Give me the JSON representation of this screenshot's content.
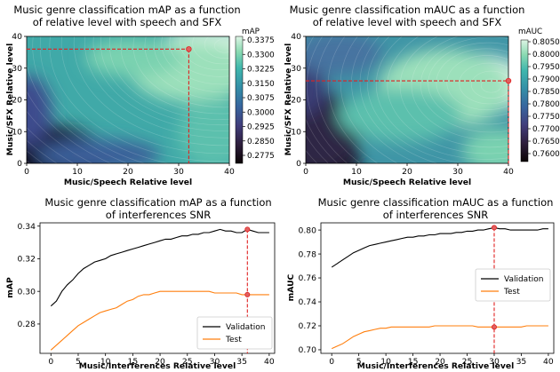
{
  "colors": {
    "validation": "#000000",
    "test": "#ff7f0e",
    "marker": "#e02020",
    "grid": "#ffffff"
  },
  "chart_data": [
    {
      "type": "heatmap",
      "title": [
        "Music genre classification mAP as a function",
        "of relative level with speech and SFX"
      ],
      "xlabel": "Music/Speech Relative level",
      "ylabel": "Music/SFX Relative level",
      "xlim": [
        0,
        40
      ],
      "ylim": [
        0,
        40
      ],
      "xticks": [
        0,
        10,
        20,
        30,
        40
      ],
      "yticks": [
        0,
        10,
        20,
        30,
        40
      ],
      "colorbar_label": "mAP",
      "colorbar_range": [
        0.2775,
        0.3375
      ],
      "colorbar_ticks": [
        "0.3375",
        "0.3300",
        "0.3225",
        "0.3150",
        "0.3075",
        "0.3000",
        "0.2925",
        "0.2850",
        "0.2775"
      ],
      "optimum": {
        "x": 32,
        "y": 36
      },
      "contours": "filled",
      "colormap": "mako (dark purple to light green)"
    },
    {
      "type": "heatmap",
      "title": [
        "Music genre classification mAUC as a function",
        "of relative level with speech and SFX"
      ],
      "xlabel": "Music/Speech Relative level",
      "ylabel": "Music/SFX Relative level",
      "xlim": [
        0,
        40
      ],
      "ylim": [
        0,
        40
      ],
      "xticks": [
        0,
        10,
        20,
        30,
        40
      ],
      "yticks": [
        0,
        10,
        20,
        30,
        40
      ],
      "colorbar_label": "mAUC",
      "colorbar_range": [
        0.76,
        0.805
      ],
      "colorbar_ticks": [
        "0.8050",
        "0.8000",
        "0.7950",
        "0.7900",
        "0.7850",
        "0.7800",
        "0.7750",
        "0.7700",
        "0.7650",
        "0.7600"
      ],
      "optimum": {
        "x": 40,
        "y": 26
      },
      "contours": "filled",
      "colormap": "mako (dark purple to light green)"
    },
    {
      "type": "line",
      "title": [
        "Music genre classification mAP as a function",
        "of interferences SNR"
      ],
      "xlabel": "Music/Interferences Relative level",
      "ylabel": "mAP",
      "xlim": [
        -2,
        41
      ],
      "ylim": [
        0.262,
        0.342
      ],
      "xticks": [
        0,
        5,
        10,
        15,
        20,
        25,
        30,
        35,
        40
      ],
      "yticks": [
        0.28,
        0.3,
        0.32,
        0.34
      ],
      "ytick_labels": [
        "0.28",
        "0.30",
        "0.32",
        "0.34"
      ],
      "legend_position": "bottom-right",
      "series": [
        {
          "name": "Validation",
          "x": [
            0,
            1,
            2,
            3,
            4,
            5,
            6,
            7,
            8,
            9,
            10,
            11,
            12,
            13,
            14,
            15,
            16,
            17,
            18,
            19,
            20,
            21,
            22,
            23,
            24,
            25,
            26,
            27,
            28,
            29,
            30,
            31,
            32,
            33,
            34,
            35,
            36,
            37,
            38,
            39,
            40
          ],
          "values": [
            0.291,
            0.294,
            0.3,
            0.304,
            0.307,
            0.311,
            0.314,
            0.316,
            0.318,
            0.319,
            0.32,
            0.322,
            0.323,
            0.324,
            0.325,
            0.326,
            0.327,
            0.328,
            0.329,
            0.33,
            0.331,
            0.332,
            0.332,
            0.333,
            0.334,
            0.334,
            0.335,
            0.335,
            0.336,
            0.336,
            0.337,
            0.338,
            0.337,
            0.337,
            0.336,
            0.336,
            0.338,
            0.337,
            0.336,
            0.336,
            0.336
          ]
        },
        {
          "name": "Test",
          "x": [
            0,
            1,
            2,
            3,
            4,
            5,
            6,
            7,
            8,
            9,
            10,
            11,
            12,
            13,
            14,
            15,
            16,
            17,
            18,
            19,
            20,
            21,
            22,
            23,
            24,
            25,
            26,
            27,
            28,
            29,
            30,
            31,
            32,
            33,
            34,
            35,
            36,
            37,
            38,
            39,
            40
          ],
          "values": [
            0.264,
            0.267,
            0.27,
            0.273,
            0.276,
            0.279,
            0.281,
            0.283,
            0.285,
            0.287,
            0.288,
            0.289,
            0.29,
            0.292,
            0.294,
            0.295,
            0.297,
            0.298,
            0.298,
            0.299,
            0.3,
            0.3,
            0.3,
            0.3,
            0.3,
            0.3,
            0.3,
            0.3,
            0.3,
            0.3,
            0.299,
            0.299,
            0.299,
            0.299,
            0.299,
            0.298,
            0.298,
            0.298,
            0.298,
            0.298,
            0.298
          ]
        }
      ],
      "optimum": {
        "x": 36,
        "validation": 0.338,
        "test": 0.298
      }
    },
    {
      "type": "line",
      "title": [
        "Music genre classification mAUC as a function",
        "of interferences SNR"
      ],
      "xlabel": "Music/Interferences Relative level",
      "ylabel": "mAUC",
      "xlim": [
        -2,
        41
      ],
      "ylim": [
        0.697,
        0.806
      ],
      "xticks": [
        0,
        5,
        10,
        15,
        20,
        25,
        30,
        35,
        40
      ],
      "yticks": [
        0.7,
        0.72,
        0.74,
        0.76,
        0.78,
        0.8
      ],
      "ytick_labels": [
        "0.70",
        "0.72",
        "0.74",
        "0.76",
        "0.78",
        "0.80"
      ],
      "legend_position": "center-right",
      "series": [
        {
          "name": "Validation",
          "x": [
            0,
            1,
            2,
            3,
            4,
            5,
            6,
            7,
            8,
            9,
            10,
            11,
            12,
            13,
            14,
            15,
            16,
            17,
            18,
            19,
            20,
            21,
            22,
            23,
            24,
            25,
            26,
            27,
            28,
            29,
            30,
            31,
            32,
            33,
            34,
            35,
            36,
            37,
            38,
            39,
            40
          ],
          "values": [
            0.769,
            0.772,
            0.775,
            0.778,
            0.781,
            0.783,
            0.785,
            0.787,
            0.788,
            0.789,
            0.79,
            0.791,
            0.792,
            0.793,
            0.794,
            0.794,
            0.795,
            0.795,
            0.796,
            0.796,
            0.797,
            0.797,
            0.797,
            0.798,
            0.798,
            0.799,
            0.799,
            0.8,
            0.8,
            0.801,
            0.802,
            0.801,
            0.801,
            0.8,
            0.8,
            0.8,
            0.8,
            0.8,
            0.8,
            0.801,
            0.801
          ]
        },
        {
          "name": "Test",
          "x": [
            0,
            1,
            2,
            3,
            4,
            5,
            6,
            7,
            8,
            9,
            10,
            11,
            12,
            13,
            14,
            15,
            16,
            17,
            18,
            19,
            20,
            21,
            22,
            23,
            24,
            25,
            26,
            27,
            28,
            29,
            30,
            31,
            32,
            33,
            34,
            35,
            36,
            37,
            38,
            39,
            40
          ],
          "values": [
            0.701,
            0.703,
            0.705,
            0.708,
            0.711,
            0.713,
            0.715,
            0.716,
            0.717,
            0.718,
            0.718,
            0.719,
            0.719,
            0.719,
            0.719,
            0.719,
            0.719,
            0.719,
            0.719,
            0.72,
            0.72,
            0.72,
            0.72,
            0.72,
            0.72,
            0.72,
            0.72,
            0.719,
            0.719,
            0.719,
            0.719,
            0.719,
            0.719,
            0.719,
            0.719,
            0.719,
            0.72,
            0.72,
            0.72,
            0.72,
            0.72
          ]
        }
      ],
      "optimum": {
        "x": 30,
        "validation": 0.802,
        "test": 0.719
      }
    }
  ]
}
